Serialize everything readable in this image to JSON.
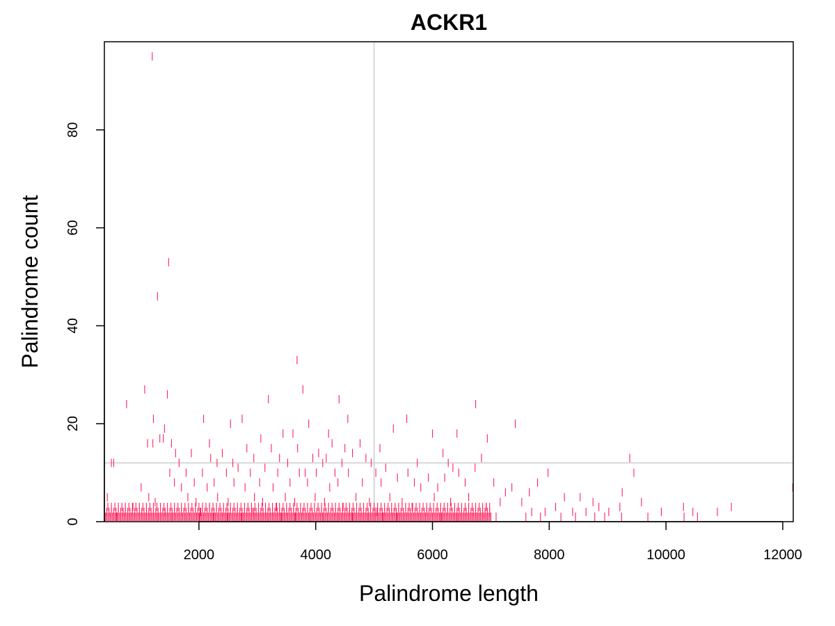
{
  "chart_data": {
    "type": "scatter",
    "title": "ACKR1",
    "xlabel": "Palindrome length",
    "ylabel": "Palindrome count",
    "xlim": [
      380,
      12180
    ],
    "ylim": [
      0,
      98
    ],
    "x_ticks": [
      2000,
      4000,
      6000,
      8000,
      10000,
      12000
    ],
    "y_ticks": [
      0,
      20,
      40,
      60,
      80
    ],
    "reference_lines": {
      "vertical_x": 5000,
      "horizontal_y": 12
    },
    "colors": {
      "points": "#ff1f5b",
      "reference_lines": "#cccccc",
      "axes": "#000000"
    },
    "marker": "vertical-dash",
    "grid": false,
    "legend": "none",
    "series": [
      {
        "points": [
          [
            1200,
            95
          ],
          [
            1480,
            53
          ],
          [
            1290,
            46
          ],
          [
            3680,
            33
          ],
          [
            1070,
            27
          ],
          [
            3780,
            27
          ],
          [
            1460,
            26
          ],
          [
            3190,
            25
          ],
          [
            4400,
            25
          ],
          [
            6740,
            24
          ],
          [
            760,
            24
          ],
          [
            1220,
            21
          ],
          [
            2080,
            21
          ],
          [
            2740,
            21
          ],
          [
            4550,
            21
          ],
          [
            5560,
            21
          ],
          [
            2540,
            20
          ],
          [
            3880,
            20
          ],
          [
            7420,
            20
          ],
          [
            1410,
            19
          ],
          [
            5330,
            19
          ],
          [
            1330,
            17
          ],
          [
            1390,
            17
          ],
          [
            3060,
            17
          ],
          [
            6940,
            17
          ],
          [
            3440,
            18
          ],
          [
            4220,
            18
          ],
          [
            6000,
            18
          ],
          [
            6420,
            18
          ],
          [
            3610,
            18
          ],
          [
            1120,
            16
          ],
          [
            1210,
            16
          ],
          [
            1530,
            16
          ],
          [
            2180,
            16
          ],
          [
            4280,
            16
          ],
          [
            4760,
            16
          ],
          [
            5100,
            15
          ],
          [
            3240,
            15
          ],
          [
            2820,
            15
          ],
          [
            3690,
            15
          ],
          [
            4500,
            15
          ],
          [
            1600,
            14
          ],
          [
            1870,
            14
          ],
          [
            2400,
            14
          ],
          [
            4050,
            14
          ],
          [
            4630,
            14
          ],
          [
            6180,
            14
          ],
          [
            9380,
            13
          ],
          [
            6840,
            13
          ],
          [
            4860,
            13
          ],
          [
            2200,
            13
          ],
          [
            2940,
            13
          ],
          [
            3380,
            13
          ],
          [
            3950,
            13
          ],
          [
            4180,
            13
          ],
          [
            4450,
            12
          ],
          [
            4950,
            12
          ],
          [
            5740,
            12
          ],
          [
            6270,
            12
          ],
          [
            500,
            12
          ],
          [
            540,
            12
          ],
          [
            1660,
            12
          ],
          [
            2310,
            12
          ],
          [
            2580,
            12
          ],
          [
            3520,
            12
          ],
          [
            4120,
            12
          ],
          [
            5200,
            11
          ],
          [
            6350,
            11
          ],
          [
            6730,
            11
          ],
          [
            2670,
            11
          ],
          [
            3130,
            11
          ],
          [
            3820,
            10
          ],
          [
            4330,
            10
          ],
          [
            5030,
            10
          ],
          [
            5580,
            10
          ],
          [
            6450,
            10
          ],
          [
            7980,
            10
          ],
          [
            9450,
            10
          ],
          [
            1500,
            10
          ],
          [
            1780,
            10
          ],
          [
            2060,
            10
          ],
          [
            2470,
            10
          ],
          [
            2880,
            10
          ],
          [
            3350,
            10
          ],
          [
            3720,
            10
          ],
          [
            4010,
            10
          ],
          [
            4560,
            10
          ],
          [
            5400,
            9
          ],
          [
            5930,
            9
          ],
          [
            6210,
            9
          ],
          [
            7800,
            8
          ],
          [
            1580,
            8
          ],
          [
            1920,
            8
          ],
          [
            2260,
            8
          ],
          [
            2600,
            8
          ],
          [
            3040,
            8
          ],
          [
            3560,
            8
          ],
          [
            3860,
            8
          ],
          [
            4380,
            8
          ],
          [
            4800,
            8
          ],
          [
            5120,
            8
          ],
          [
            5690,
            8
          ],
          [
            6560,
            8
          ],
          [
            7050,
            8
          ],
          [
            7360,
            7
          ],
          [
            1010,
            7
          ],
          [
            1700,
            7
          ],
          [
            2140,
            7
          ],
          [
            2790,
            7
          ],
          [
            3270,
            7
          ],
          [
            4240,
            7
          ],
          [
            5800,
            7
          ],
          [
            6090,
            7
          ],
          [
            12170,
            7
          ],
          [
            7660,
            6
          ],
          [
            7250,
            6
          ],
          [
            9250,
            6
          ],
          [
            430,
            5
          ],
          [
            1140,
            5
          ],
          [
            1810,
            5
          ],
          [
            2320,
            5
          ],
          [
            2950,
            5
          ],
          [
            3480,
            5
          ],
          [
            3990,
            5
          ],
          [
            4690,
            5
          ],
          [
            5270,
            5
          ],
          [
            6030,
            5
          ],
          [
            6620,
            5
          ],
          [
            8260,
            5
          ],
          [
            8530,
            5
          ],
          [
            8750,
            4
          ],
          [
            9580,
            4
          ],
          [
            4920,
            4
          ],
          [
            5480,
            4
          ],
          [
            6310,
            4
          ],
          [
            7160,
            4
          ],
          [
            7530,
            4
          ],
          [
            1250,
            4
          ],
          [
            1950,
            4
          ],
          [
            2500,
            4
          ],
          [
            3090,
            4
          ],
          [
            3640,
            4
          ],
          [
            4150,
            4
          ],
          [
            9210,
            3
          ],
          [
            10300,
            3
          ],
          [
            11120,
            3
          ],
          [
            8110,
            3
          ],
          [
            8850,
            3
          ],
          [
            6920,
            3
          ],
          [
            5650,
            3
          ],
          [
            4470,
            3
          ],
          [
            3330,
            3
          ],
          [
            2180,
            3
          ],
          [
            870,
            3
          ],
          [
            7700,
            2
          ],
          [
            8400,
            2
          ],
          [
            9920,
            2
          ],
          [
            10460,
            2
          ],
          [
            10880,
            2
          ],
          [
            7930,
            2
          ],
          [
            8630,
            2
          ],
          [
            9020,
            2
          ],
          [
            6500,
            2
          ],
          [
            5900,
            2
          ],
          [
            5050,
            2
          ],
          [
            4580,
            2
          ],
          [
            3780,
            2
          ],
          [
            2920,
            2
          ],
          [
            2030,
            2
          ],
          [
            1420,
            2
          ],
          [
            700,
            2
          ],
          [
            7850,
            1
          ],
          [
            8200,
            1
          ],
          [
            8450,
            1
          ],
          [
            8780,
            1
          ],
          [
            8950,
            1
          ],
          [
            9240,
            1
          ],
          [
            9690,
            1
          ],
          [
            10310,
            1
          ],
          [
            10540,
            1
          ],
          [
            7600,
            1
          ],
          [
            7090,
            1
          ],
          [
            6780,
            1
          ],
          [
            6420,
            1
          ],
          [
            6150,
            1
          ],
          [
            5780,
            1
          ],
          [
            5390,
            1
          ],
          [
            5150,
            1
          ],
          [
            4900,
            1
          ],
          [
            4630,
            1
          ],
          [
            4380,
            1
          ],
          [
            4120,
            1
          ],
          [
            3900,
            1
          ],
          [
            3650,
            1
          ],
          [
            3410,
            1
          ],
          [
            3180,
            1
          ],
          [
            2960,
            1
          ],
          [
            2730,
            1
          ],
          [
            2490,
            1
          ],
          [
            2250,
            1
          ],
          [
            2010,
            1
          ],
          [
            1780,
            1
          ],
          [
            1540,
            1
          ],
          [
            1300,
            1
          ],
          [
            1060,
            1
          ],
          [
            820,
            1
          ],
          [
            590,
            1
          ]
        ],
        "dense_band": {
          "x_range": [
            400,
            7000
          ],
          "y_values": [
            1,
            2,
            3
          ],
          "step": 20
        }
      }
    ]
  }
}
